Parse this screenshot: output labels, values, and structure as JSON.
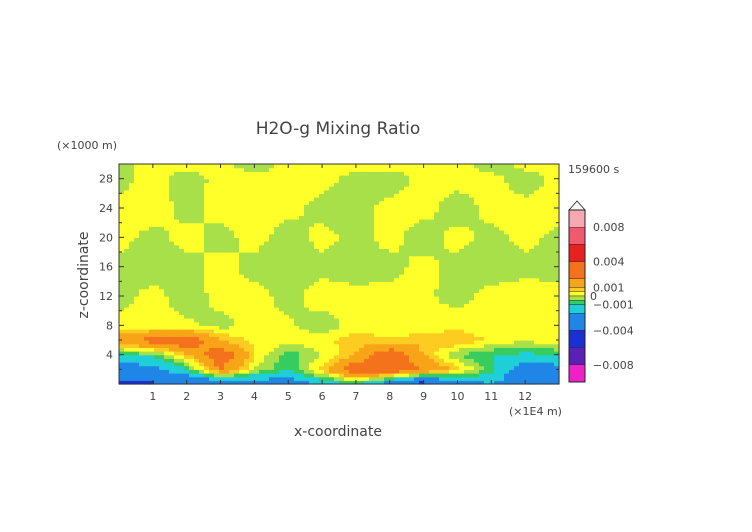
{
  "chart_data": {
    "type": "heatmap",
    "title": "H2O-g Mixing Ratio",
    "xlabel": "x-coordinate",
    "ylabel": "z-coordinate",
    "x_unit": "(×1E4 m)",
    "y_unit": "(×1000 m)",
    "time_label": "159600 s",
    "xlim": [
      0,
      13
    ],
    "ylim": [
      0,
      30
    ],
    "x_ticks": [
      "1",
      "2",
      "3",
      "4",
      "5",
      "6",
      "7",
      "8",
      "9",
      "10",
      "11",
      "12"
    ],
    "y_ticks": [
      "4",
      "8",
      "12",
      "16",
      "20",
      "24",
      "28"
    ],
    "colorbar": {
      "range": [
        -0.01,
        0.01
      ],
      "tick_labels": [
        {
          "value": 0.008,
          "label": "0.008"
        },
        {
          "value": 0.004,
          "label": "0.004"
        },
        {
          "value": 0.001,
          "label": "0.001"
        },
        {
          "value": 0,
          "label": "0"
        },
        {
          "value": -0.001,
          "label": "−0.001"
        },
        {
          "value": -0.004,
          "label": "−0.004"
        },
        {
          "value": -0.008,
          "label": "−0.008"
        }
      ],
      "colors": [
        {
          "from": 0.008,
          "to": 0.01,
          "color": "#f8a8b0"
        },
        {
          "from": 0.006,
          "to": 0.008,
          "color": "#f05a6e"
        },
        {
          "from": 0.004,
          "to": 0.006,
          "color": "#e8201e"
        },
        {
          "from": 0.002,
          "to": 0.004,
          "color": "#f4721c"
        },
        {
          "from": 0.001,
          "to": 0.002,
          "color": "#f7a418"
        },
        {
          "from": 0.0005,
          "to": 0.001,
          "color": "#fccd20"
        },
        {
          "from": 0,
          "to": 0.0005,
          "color": "#ffff2a"
        },
        {
          "from": -0.0005,
          "to": 0,
          "color": "#a8e04a"
        },
        {
          "from": -0.001,
          "to": -0.0005,
          "color": "#36cc5e"
        },
        {
          "from": -0.002,
          "to": -0.001,
          "color": "#1ecfd8"
        },
        {
          "from": -0.004,
          "to": -0.002,
          "color": "#1f86e8"
        },
        {
          "from": -0.006,
          "to": -0.004,
          "color": "#1a2fd4"
        },
        {
          "from": -0.008,
          "to": -0.006,
          "color": "#5a20b8"
        },
        {
          "from": -0.01,
          "to": -0.008,
          "color": "#f020c8"
        }
      ]
    },
    "grid_x": [
      0,
      1,
      2,
      3,
      4,
      5,
      6,
      7,
      8,
      9,
      10,
      11,
      12,
      13
    ],
    "grid_z": [
      0,
      2,
      4,
      6,
      8,
      12,
      16,
      20,
      24,
      28,
      30
    ],
    "values": [
      [
        -0.0045,
        -0.0042,
        -0.004,
        -0.0035,
        -0.003,
        -0.0028,
        -0.002,
        -0.001,
        -0.003,
        -0.005,
        -0.003,
        -0.002,
        -0.003,
        -0.003
      ],
      [
        -0.003,
        -0.0025,
        -0.001,
        0.002,
        0.0,
        -0.001,
        0.0008,
        0.003,
        0.003,
        0.002,
        0.0008,
        -0.0008,
        -0.003,
        -0.0025
      ],
      [
        -0.001,
        -0.0008,
        0.0008,
        0.003,
        0.0005,
        -0.0008,
        0.0,
        0.001,
        0.003,
        0.001,
        -0.0005,
        -0.001,
        -0.0012,
        -0.001
      ],
      [
        0.0015,
        0.0025,
        0.003,
        0.001,
        0.0004,
        0.0002,
        0.0003,
        0.0008,
        0.0006,
        0.0008,
        0.001,
        0.0004,
        0.0,
        0.0005
      ],
      [
        0.0002,
        0.0002,
        0.0001,
        -0.0002,
        0.0002,
        0.0001,
        -0.0003,
        0.0002,
        0.0001,
        0.0002,
        0.0003,
        0.0001,
        0.0002,
        0.0002
      ],
      [
        -0.0002,
        0.0002,
        -0.0003,
        0.0002,
        0.0002,
        -0.0002,
        0.0003,
        0.0002,
        0.0002,
        0.0001,
        -0.0002,
        0.0002,
        0.0003,
        0.0002
      ],
      [
        -0.0002,
        -0.0003,
        -0.0002,
        0.0002,
        -0.0002,
        -0.0003,
        -0.0002,
        -0.0003,
        -0.0002,
        0.0002,
        -0.0002,
        -0.0003,
        -0.0002,
        -0.0002
      ],
      [
        0.0002,
        -0.0002,
        0.0002,
        -0.0002,
        0.0002,
        -0.0003,
        0.0002,
        -0.0002,
        0.0002,
        -0.0003,
        0.0002,
        -0.0002,
        0.0002,
        -0.0002
      ],
      [
        0.0002,
        0.0003,
        -0.0002,
        0.0002,
        0.0003,
        0.0002,
        -0.0002,
        -0.0002,
        0.0002,
        0.0002,
        -0.0003,
        0.0002,
        0.0002,
        0.0003
      ],
      [
        -0.0002,
        0.0002,
        -0.0003,
        0.0002,
        0.0002,
        0.0002,
        0.0002,
        -0.0002,
        -0.0003,
        0.0002,
        0.0002,
        0.0002,
        -0.0003,
        0.0002
      ],
      [
        -0.0002,
        0.0002,
        0.0002,
        0.0002,
        -0.0003,
        0.0002,
        0.0002,
        0.0002,
        0.0002,
        0.0002,
        0.0002,
        -0.0003,
        0.0002,
        0.0002
      ]
    ]
  }
}
